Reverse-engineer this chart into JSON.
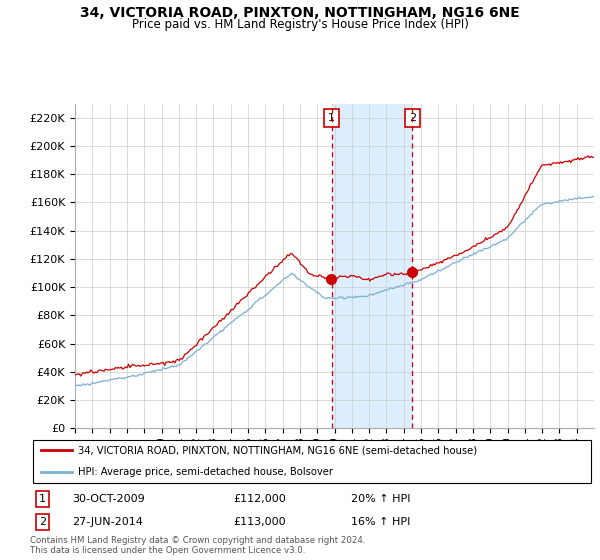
{
  "title": "34, VICTORIA ROAD, PINXTON, NOTTINGHAM, NG16 6NE",
  "subtitle": "Price paid vs. HM Land Registry's House Price Index (HPI)",
  "red_label": "34, VICTORIA ROAD, PINXTON, NOTTINGHAM, NG16 6NE (semi-detached house)",
  "blue_label": "HPI: Average price, semi-detached house, Bolsover",
  "transaction1_date": "30-OCT-2009",
  "transaction1_price": "£112,000",
  "transaction1_hpi": "20% ↑ HPI",
  "transaction2_date": "27-JUN-2014",
  "transaction2_price": "£113,000",
  "transaction2_hpi": "16% ↑ HPI",
  "footer": "Contains HM Land Registry data © Crown copyright and database right 2024.\nThis data is licensed under the Open Government Licence v3.0.",
  "ylim": [
    0,
    230000
  ],
  "yticks": [
    0,
    20000,
    40000,
    60000,
    80000,
    100000,
    120000,
    140000,
    160000,
    180000,
    200000,
    220000
  ],
  "red_color": "#cc0000",
  "blue_color": "#7ab0d4",
  "shading_color": "#ddeeff",
  "grid_color": "#cccccc",
  "marker1_x": 2009.83,
  "marker2_x": 2014.5,
  "xstart": 1995,
  "xend": 2024.5
}
